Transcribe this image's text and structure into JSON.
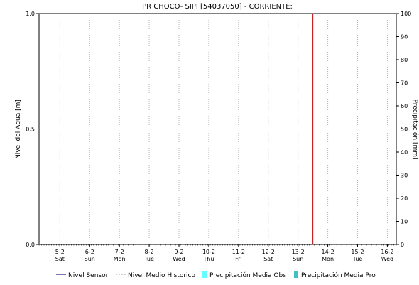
{
  "chart_data": {
    "type": "line",
    "title": "PR CHOCO- SIPI [54037050] - CORRIENTE:",
    "ylabel": "Nivel del Agua [m]",
    "y2label": "Precipitación [mm]",
    "ylim": [
      0,
      1
    ],
    "y2lim": [
      0,
      100
    ],
    "y_ticks": [
      "0.0",
      "0.5",
      "1.0"
    ],
    "y2_ticks": [
      "0",
      "10",
      "20",
      "30",
      "40",
      "50",
      "60",
      "70",
      "80",
      "90",
      "100"
    ],
    "x_ticks": [
      {
        "date": "5-2",
        "day": "Sat"
      },
      {
        "date": "6-2",
        "day": "Sun"
      },
      {
        "date": "7-2",
        "day": "Mon"
      },
      {
        "date": "8-2",
        "day": "Tue"
      },
      {
        "date": "9-2",
        "day": "Wed"
      },
      {
        "date": "10-2",
        "day": "Thu"
      },
      {
        "date": "11-2",
        "day": "Fri"
      },
      {
        "date": "12-2",
        "day": "Sat"
      },
      {
        "date": "13-2",
        "day": "Sun"
      },
      {
        "date": "14-2",
        "day": "Mon"
      },
      {
        "date": "15-2",
        "day": "Tue"
      },
      {
        "date": "16-2",
        "day": "Wed"
      }
    ],
    "current_time_marker": "13-2 (approx. 13.5)",
    "grid": true,
    "legend_position": "bottom",
    "series": [
      {
        "name": "Nivel Sensor",
        "color": "#1a1a8c",
        "values": []
      },
      {
        "name": "Nivel Medio Historico",
        "color": "#b0b0b0",
        "values": []
      },
      {
        "name": "Precipitación Media Obs",
        "color": "#66ffff",
        "values": []
      },
      {
        "name": "Precipitación Media Pro",
        "color": "#40c0c0",
        "values": []
      }
    ],
    "colors": {
      "marker": "#c00000",
      "grid": "#b4b4b4",
      "axis": "#000000"
    }
  }
}
